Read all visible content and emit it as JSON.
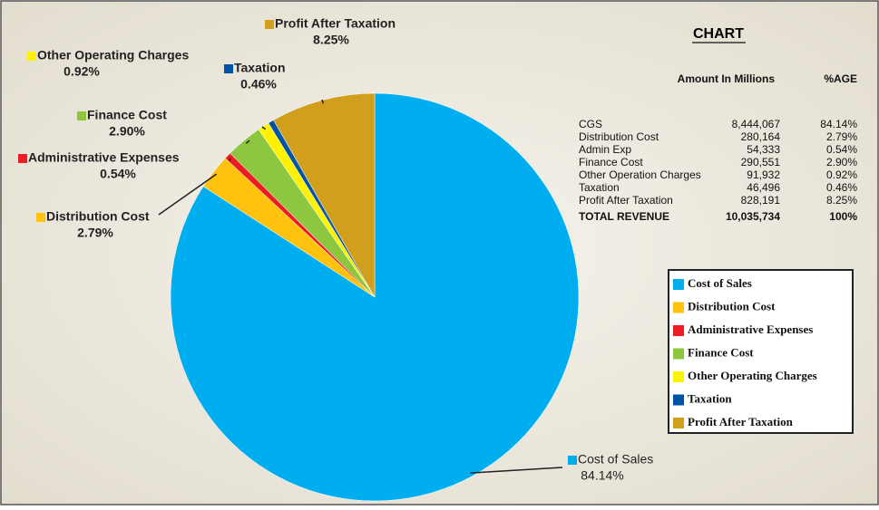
{
  "chart_data": {
    "type": "pie",
    "categories": [
      "Cost of  Sales",
      "Distribution Cost",
      "Administrative Expenses",
      "Finance Cost",
      "Other Operating Charges",
      "Taxation",
      "Profit After Taxation"
    ],
    "values": [
      84.14,
      2.79,
      0.54,
      2.9,
      0.92,
      0.46,
      8.25
    ],
    "value_labels": [
      "84.14%",
      "2.79%",
      "0.54%",
      "2.90%",
      "0.92%",
      "0.46%",
      "8.25%"
    ],
    "colors": [
      "#00aeef",
      "#ffc20e",
      "#ed1c24",
      "#8dc63f",
      "#fff200",
      "#0054a6",
      "#d19f1c"
    ]
  },
  "table": {
    "title": "CHART",
    "header": [
      "Amount In Millions",
      "%AGE"
    ],
    "rows": [
      [
        "CGS",
        "8,444,067",
        "84.14%"
      ],
      [
        "Distribution Cost",
        "280,164",
        "2.79%"
      ],
      [
        "Admin Exp",
        "54,333",
        "0.54%"
      ],
      [
        "Finance Cost",
        "290,551",
        "2.90%"
      ],
      [
        "Other Operation Charges",
        "91,932",
        "0.92%"
      ],
      [
        "Taxation",
        "46,496",
        "0.46%"
      ],
      [
        "Profit After Taxation",
        "828,191",
        "8.25%"
      ]
    ],
    "total": [
      "TOTAL REVENUE",
      "10,035,734",
      "100%"
    ]
  }
}
